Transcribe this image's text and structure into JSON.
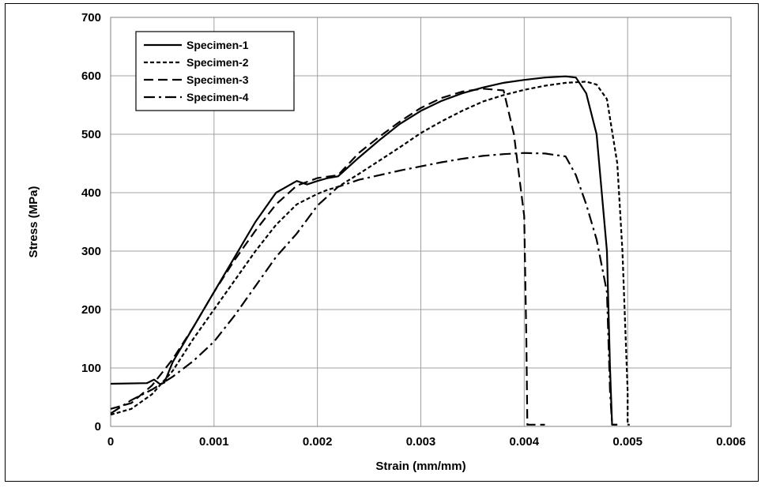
{
  "chart_data": {
    "type": "line",
    "title": "",
    "xlabel": "Strain (mm/mm)",
    "ylabel": "Stress (MPa)",
    "xlim": [
      0,
      0.006
    ],
    "ylim": [
      0,
      700
    ],
    "x_ticks": [
      "0",
      "0.001",
      "0.002",
      "0.003",
      "0.004",
      "0.005",
      "0.006"
    ],
    "y_ticks": [
      "0",
      "100",
      "200",
      "300",
      "400",
      "500",
      "600",
      "700"
    ],
    "grid": true,
    "legend_position": "top-left",
    "series": [
      {
        "name": "Specimen-1",
        "dash": "solid",
        "points": [
          [
            0,
            73
          ],
          [
            0.00035,
            74
          ],
          [
            0.00042,
            80
          ],
          [
            0.00045,
            76
          ],
          [
            0.00048,
            72
          ],
          [
            0.00052,
            75
          ],
          [
            0.0006,
            110
          ],
          [
            0.0008,
            170
          ],
          [
            0.001,
            230
          ],
          [
            0.0012,
            290
          ],
          [
            0.0014,
            350
          ],
          [
            0.0016,
            400
          ],
          [
            0.0018,
            420
          ],
          [
            0.0019,
            414
          ],
          [
            0.002,
            420
          ],
          [
            0.0021,
            425
          ],
          [
            0.0022,
            428
          ],
          [
            0.0024,
            460
          ],
          [
            0.0026,
            490
          ],
          [
            0.0028,
            518
          ],
          [
            0.003,
            540
          ],
          [
            0.0032,
            557
          ],
          [
            0.0034,
            570
          ],
          [
            0.0036,
            580
          ],
          [
            0.0038,
            588
          ],
          [
            0.004,
            593
          ],
          [
            0.0042,
            597
          ],
          [
            0.0044,
            599
          ],
          [
            0.0045,
            597
          ],
          [
            0.0046,
            570
          ],
          [
            0.0047,
            500
          ],
          [
            0.0048,
            300
          ],
          [
            0.00483,
            100
          ],
          [
            0.00485,
            3
          ],
          [
            0.0049,
            3
          ]
        ]
      },
      {
        "name": "Specimen-2",
        "dash": "short-dash",
        "points": [
          [
            0,
            20
          ],
          [
            0.0001,
            25
          ],
          [
            0.0002,
            30
          ],
          [
            0.0004,
            55
          ],
          [
            0.0006,
            95
          ],
          [
            0.0008,
            150
          ],
          [
            0.001,
            200
          ],
          [
            0.0012,
            250
          ],
          [
            0.0014,
            300
          ],
          [
            0.0016,
            345
          ],
          [
            0.0018,
            380
          ],
          [
            0.002,
            398
          ],
          [
            0.0021,
            405
          ],
          [
            0.0022,
            410
          ],
          [
            0.0024,
            432
          ],
          [
            0.0026,
            455
          ],
          [
            0.0028,
            478
          ],
          [
            0.003,
            502
          ],
          [
            0.0032,
            522
          ],
          [
            0.0034,
            540
          ],
          [
            0.0036,
            556
          ],
          [
            0.0038,
            567
          ],
          [
            0.004,
            576
          ],
          [
            0.0042,
            583
          ],
          [
            0.0044,
            588
          ],
          [
            0.0046,
            590
          ],
          [
            0.0047,
            585
          ],
          [
            0.0048,
            560
          ],
          [
            0.0049,
            450
          ],
          [
            0.00495,
            300
          ],
          [
            0.005,
            60
          ],
          [
            0.005,
            3
          ],
          [
            0.00502,
            3
          ]
        ]
      },
      {
        "name": "Specimen-3",
        "dash": "long-dash",
        "points": [
          [
            0,
            30
          ],
          [
            0.0002,
            40
          ],
          [
            0.0004,
            70
          ],
          [
            0.0006,
            115
          ],
          [
            0.0008,
            170
          ],
          [
            0.001,
            230
          ],
          [
            0.0012,
            285
          ],
          [
            0.0014,
            335
          ],
          [
            0.0016,
            380
          ],
          [
            0.0018,
            412
          ],
          [
            0.002,
            425
          ],
          [
            0.0022,
            430
          ],
          [
            0.0024,
            468
          ],
          [
            0.0026,
            496
          ],
          [
            0.0028,
            522
          ],
          [
            0.003,
            545
          ],
          [
            0.0032,
            562
          ],
          [
            0.0034,
            573
          ],
          [
            0.0036,
            578
          ],
          [
            0.0038,
            575
          ],
          [
            0.0039,
            500
          ],
          [
            0.004,
            360
          ],
          [
            0.00402,
            150
          ],
          [
            0.00403,
            3
          ],
          [
            0.0042,
            3
          ]
        ]
      },
      {
        "name": "Specimen-4",
        "dash": "dash-dot",
        "points": [
          [
            0,
            22
          ],
          [
            0.0002,
            45
          ],
          [
            0.0004,
            63
          ],
          [
            0.0006,
            85
          ],
          [
            0.0008,
            112
          ],
          [
            0.001,
            145
          ],
          [
            0.0012,
            190
          ],
          [
            0.0014,
            240
          ],
          [
            0.0016,
            290
          ],
          [
            0.0018,
            330
          ],
          [
            0.002,
            378
          ],
          [
            0.0022,
            410
          ],
          [
            0.0024,
            422
          ],
          [
            0.0026,
            430
          ],
          [
            0.0028,
            438
          ],
          [
            0.003,
            445
          ],
          [
            0.0032,
            452
          ],
          [
            0.0034,
            458
          ],
          [
            0.0036,
            463
          ],
          [
            0.0038,
            466
          ],
          [
            0.004,
            468
          ],
          [
            0.0042,
            467
          ],
          [
            0.0044,
            462
          ],
          [
            0.0045,
            430
          ],
          [
            0.0046,
            380
          ],
          [
            0.0047,
            320
          ],
          [
            0.0048,
            230
          ],
          [
            0.00483,
            60
          ],
          [
            0.00485,
            3
          ],
          [
            0.0049,
            3
          ]
        ]
      }
    ]
  }
}
